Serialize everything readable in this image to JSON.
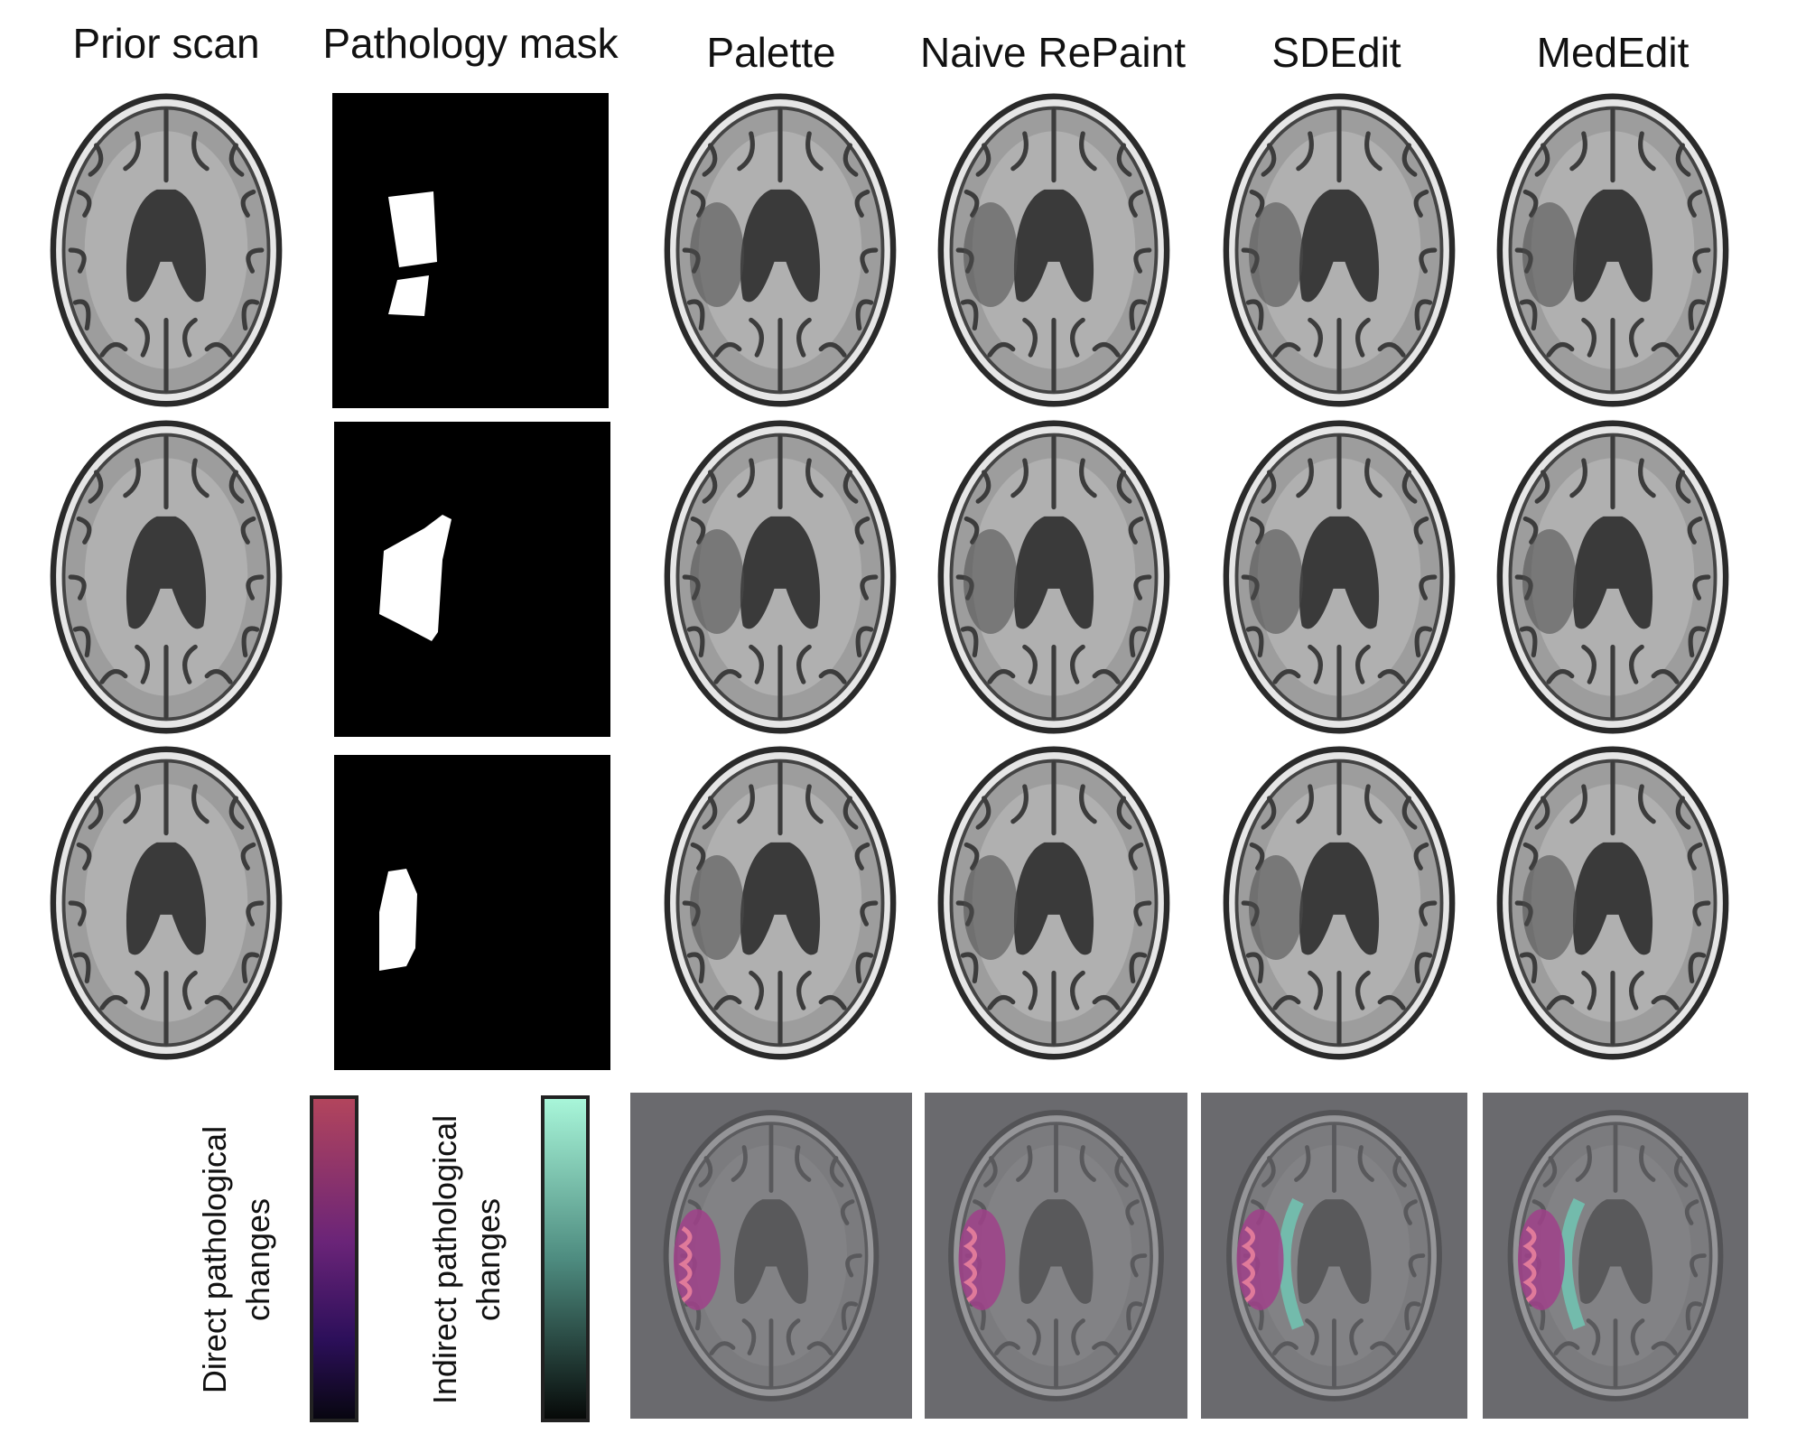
{
  "columns": [
    "Prior scan",
    "Pathology mask",
    "Palette",
    "Naive RePaint",
    "SDEdit",
    "MedEdit"
  ],
  "colorbars": [
    {
      "label_lines": [
        "Direct pathological",
        "changes"
      ]
    },
    {
      "label_lines": [
        "Indirect pathological",
        "changes"
      ]
    }
  ]
}
